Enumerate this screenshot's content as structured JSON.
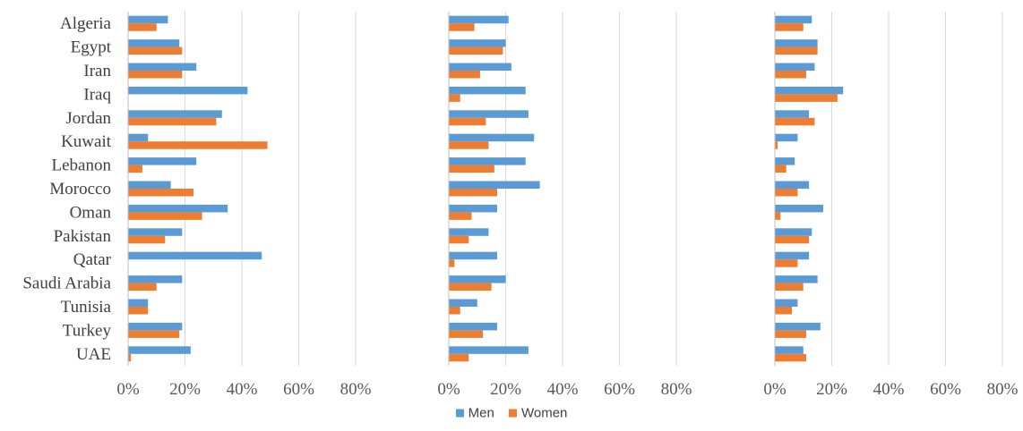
{
  "chart_data": {
    "type": "bar",
    "orientation": "horizontal",
    "categories": [
      "Algeria",
      "Egypt",
      "Iran",
      "Iraq",
      "Jordan",
      "Kuwait",
      "Lebanon",
      "Morocco",
      "Oman",
      "Pakistan",
      "Qatar",
      "Saudi Arabia",
      "Tunisia",
      "Turkey",
      "UAE"
    ],
    "xlim": [
      0,
      0.8
    ],
    "x_ticks": [
      "0%",
      "20%",
      "40%",
      "60%",
      "80%"
    ],
    "grid": "vertical",
    "legend_position": "bottom",
    "colors": {
      "Men": "#5b9bd5",
      "Women": "#ed7d31"
    },
    "panels": [
      {
        "series": [
          {
            "name": "Men",
            "values": [
              0.14,
              0.18,
              0.24,
              0.42,
              0.33,
              0.07,
              0.24,
              0.15,
              0.35,
              0.19,
              0.47,
              0.19,
              0.07,
              0.19,
              0.22
            ]
          },
          {
            "name": "Women",
            "values": [
              0.1,
              0.19,
              0.19,
              0.0,
              0.31,
              0.49,
              0.05,
              0.23,
              0.26,
              0.13,
              0.0,
              0.1,
              0.07,
              0.18,
              0.01
            ]
          }
        ]
      },
      {
        "series": [
          {
            "name": "Men",
            "values": [
              0.21,
              0.2,
              0.22,
              0.27,
              0.28,
              0.3,
              0.27,
              0.32,
              0.17,
              0.14,
              0.17,
              0.2,
              0.1,
              0.17,
              0.28
            ]
          },
          {
            "name": "Women",
            "values": [
              0.09,
              0.19,
              0.11,
              0.04,
              0.13,
              0.14,
              0.16,
              0.17,
              0.08,
              0.07,
              0.02,
              0.15,
              0.04,
              0.12,
              0.07
            ]
          }
        ]
      },
      {
        "series": [
          {
            "name": "Men",
            "values": [
              0.13,
              0.15,
              0.14,
              0.24,
              0.12,
              0.08,
              0.07,
              0.12,
              0.17,
              0.13,
              0.12,
              0.15,
              0.08,
              0.16,
              0.1
            ]
          },
          {
            "name": "Women",
            "values": [
              0.1,
              0.15,
              0.11,
              0.22,
              0.14,
              0.01,
              0.04,
              0.08,
              0.02,
              0.12,
              0.08,
              0.1,
              0.06,
              0.11,
              0.11
            ]
          }
        ]
      }
    ]
  }
}
